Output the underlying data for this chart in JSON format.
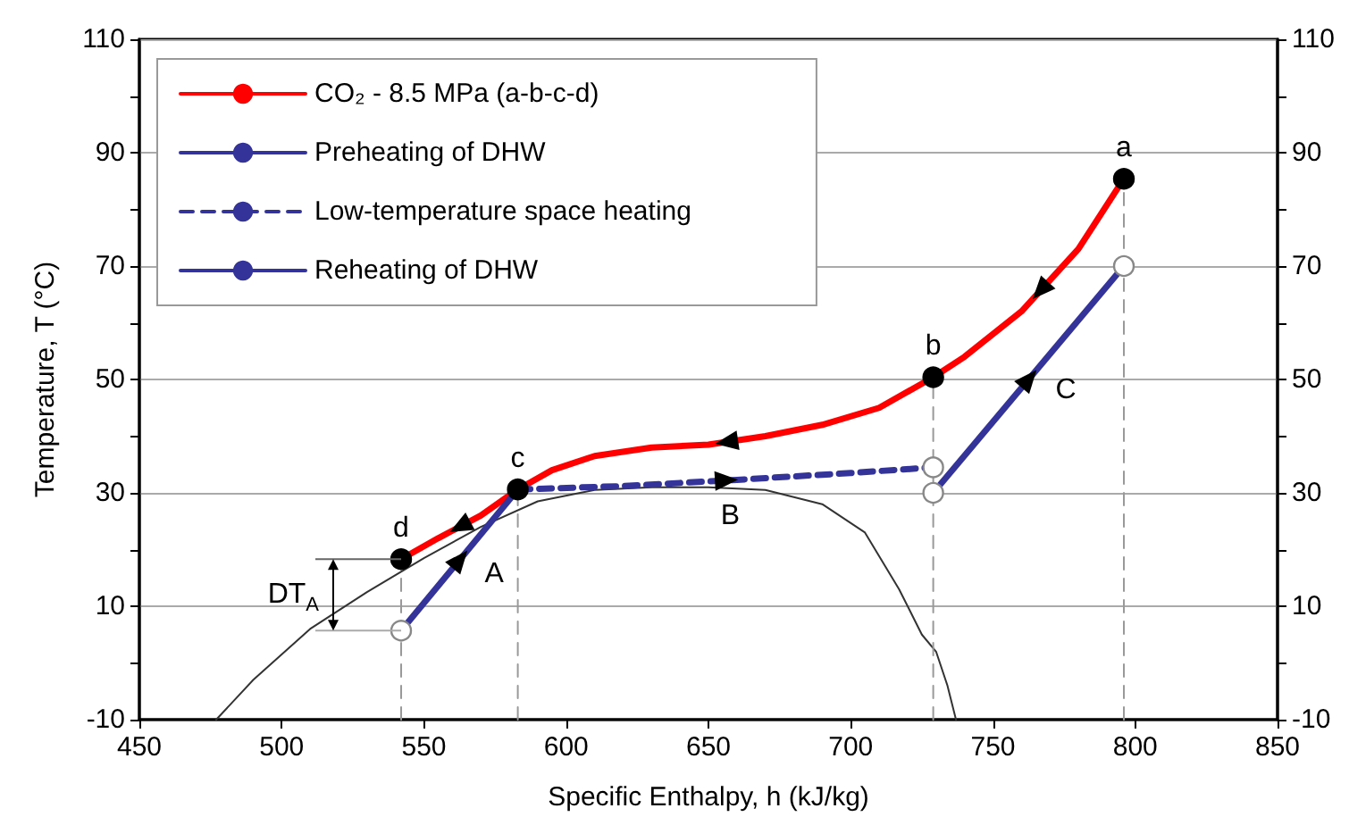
{
  "chart_data": {
    "type": "line",
    "xlabel": "Specific Enthalpy, h (kJ/kg)",
    "ylabel": "Temperature, T (°C)",
    "xlim": [
      450,
      850
    ],
    "xticks": [
      450,
      500,
      550,
      600,
      650,
      700,
      750,
      800,
      850
    ],
    "ylim": [
      -10,
      110
    ],
    "yticks": [
      -10,
      {
        "value": 0,
        "label": null
      },
      10,
      {
        "value": 20,
        "label": null
      },
      30,
      {
        "value": 40,
        "label": null
      },
      50,
      {
        "value": 60,
        "label": null
      },
      70,
      {
        "value": 80,
        "label": null
      },
      90,
      {
        "value": 100,
        "label": null
      },
      110
    ],
    "y2lim": [
      -10,
      110
    ],
    "y2ticks": [
      -10,
      {
        "value": 0,
        "label": null
      },
      10,
      {
        "value": 20,
        "label": null
      },
      30,
      {
        "value": 40,
        "label": null
      },
      50,
      {
        "value": 60,
        "label": null
      },
      70,
      {
        "value": 80,
        "label": null
      },
      90,
      {
        "value": 100,
        "label": null
      },
      110
    ],
    "grid": "y",
    "legend": "top left",
    "series": [
      {
        "name": "CO₂ - 8.5 MPa (a-b-c-d)",
        "color": "#ff0000",
        "marker": "none",
        "line_style": "solid",
        "x": [
          796,
          780,
          760,
          740,
          729,
          710,
          690,
          670,
          650,
          630,
          610,
          595,
          583,
          570,
          555,
          542
        ],
        "values": [
          85.4,
          73,
          62,
          54,
          50.4,
          45,
          42,
          40,
          38.5,
          38,
          36.5,
          34,
          30.6,
          26,
          22,
          18.3
        ]
      },
      {
        "name": "Preheating of DHW",
        "color": "#333399",
        "marker": "none",
        "line_style": "solid",
        "x": [
          542,
          583
        ],
        "values": [
          5.7,
          30.6
        ]
      },
      {
        "name": "Low-temperature space heating",
        "color": "#333399",
        "marker": "none",
        "line_style": "dashed",
        "x": [
          583,
          620,
          660,
          700,
          729
        ],
        "values": [
          30.6,
          31.2,
          32.3,
          33.5,
          34.5
        ]
      },
      {
        "name": "Reheating of DHW",
        "color": "#333399",
        "marker": "none",
        "line_style": "solid",
        "x": [
          729,
          796
        ],
        "values": [
          30,
          70
        ]
      },
      {
        "color": "#333333",
        "marker": "none",
        "line_style": "solid",
        "x": [
          477,
          490,
          510,
          530,
          550,
          570,
          590,
          610,
          630,
          650,
          670,
          690,
          705,
          717,
          725,
          730,
          734,
          737
        ],
        "values": [
          -10,
          -3,
          6,
          12.5,
          18.5,
          24,
          28.5,
          30.5,
          31,
          31,
          30.5,
          28,
          23,
          13,
          5,
          2,
          -4,
          -10
        ]
      },
      {
        "color": "#999999",
        "marker": "none",
        "line_style": "dashed",
        "x": [
          542,
          542
        ],
        "values": [
          -10,
          18.3
        ]
      },
      {
        "color": "#999999",
        "marker": "none",
        "line_style": "dashed",
        "x": [
          583,
          583
        ],
        "values": [
          -10,
          30.6
        ]
      },
      {
        "color": "#999999",
        "marker": "none",
        "line_style": "dashed",
        "x": [
          729,
          729
        ],
        "values": [
          -10,
          50.4
        ]
      },
      {
        "color": "#999999",
        "marker": "none",
        "line_style": "dashed",
        "x": [
          796,
          796
        ],
        "values": [
          -10,
          85.4
        ]
      },
      {
        "type": "scatter",
        "color": "#ffffff",
        "marker": "circle",
        "x": [
          542,
          583,
          729,
          729,
          796
        ],
        "values": [
          5.7,
          null,
          34.5,
          30,
          70
        ]
      },
      {
        "type": "scatter",
        "color": "#000000",
        "marker": "circle",
        "x": [
          796,
          729,
          583,
          542
        ],
        "values": [
          85.4,
          50.4,
          30.6,
          18.3
        ]
      }
    ],
    "annotations": [
      {
        "text": "a",
        "x": 796,
        "y": 85.4
      },
      {
        "text": "b",
        "x": 729,
        "y": 50.4
      },
      {
        "text": "c",
        "x": 583,
        "y": 30.6
      },
      {
        "text": "d",
        "x": 542,
        "y": 18.3
      },
      {
        "text": "A",
        "x": 565,
        "y": 19.7
      },
      {
        "text": "B",
        "x": 657,
        "y": 32.2
      },
      {
        "text": "C",
        "x": 766,
        "y": 52.1
      },
      {
        "text": "DT$_{A}$",
        "x": 542,
        "y": 12
      }
    ]
  }
}
